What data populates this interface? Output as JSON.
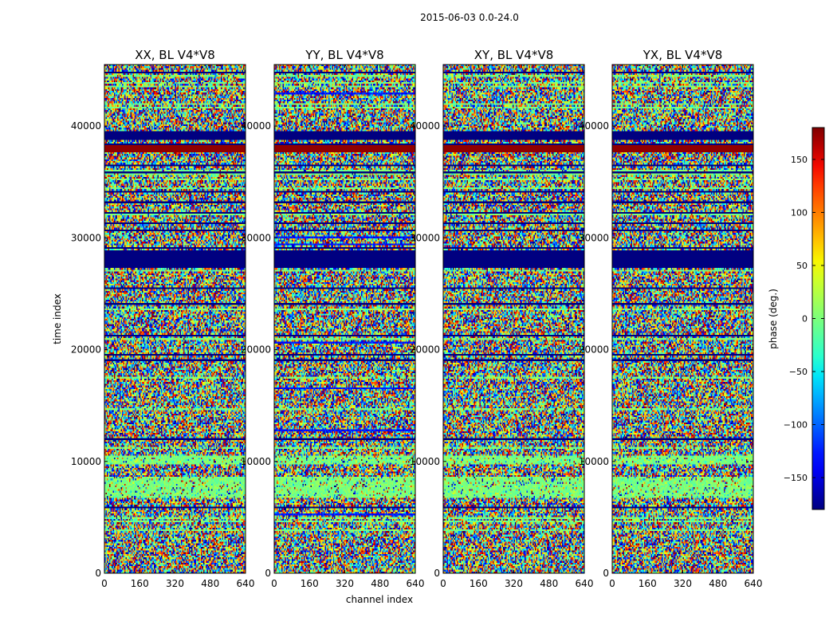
{
  "figure": {
    "suptitle": "2015-06-03 0.0-24.0"
  },
  "chart_data": {
    "type": "heatmap",
    "xlabel": "channel index",
    "ylabel": "time index",
    "xlim": [
      0,
      640
    ],
    "ylim": [
      0,
      45500
    ],
    "x_ticks": [
      0,
      160,
      320,
      480,
      640
    ],
    "y_ticks": [
      0,
      10000,
      20000,
      30000,
      40000
    ],
    "panels": [
      {
        "title": "XX, BL V4*V8",
        "polarization": "XX"
      },
      {
        "title": "YY, BL V4*V8",
        "polarization": "YY"
      },
      {
        "title": "XY, BL V4*V8",
        "polarization": "XY"
      },
      {
        "title": "YX, BL V4*V8",
        "polarization": "YX"
      }
    ],
    "colorbar": {
      "label": "phase (deg.)",
      "range": [
        -180,
        180
      ],
      "ticks": [
        -150,
        -100,
        -50,
        0,
        50,
        100,
        150
      ],
      "colormap": "jet"
    },
    "flagged_time_bands": [
      {
        "from": 27300,
        "to": 28900,
        "value": -180
      },
      {
        "from": 38800,
        "to": 39600,
        "value": -180
      }
    ],
    "high_phase_time_bands": [
      {
        "from": 37600,
        "to": 38300,
        "value": 175
      }
    ],
    "near_zero_time_bands": [
      {
        "from": 6800,
        "to": 8500,
        "value": 0
      },
      {
        "from": 10000,
        "to": 10500,
        "value": 0
      }
    ]
  },
  "colors": {
    "colormap": [
      "#00007f",
      "#0000ff",
      "#007fff",
      "#00ffff",
      "#7fff7f",
      "#ffff00",
      "#ff7f00",
      "#ff0000",
      "#7f0000"
    ]
  }
}
